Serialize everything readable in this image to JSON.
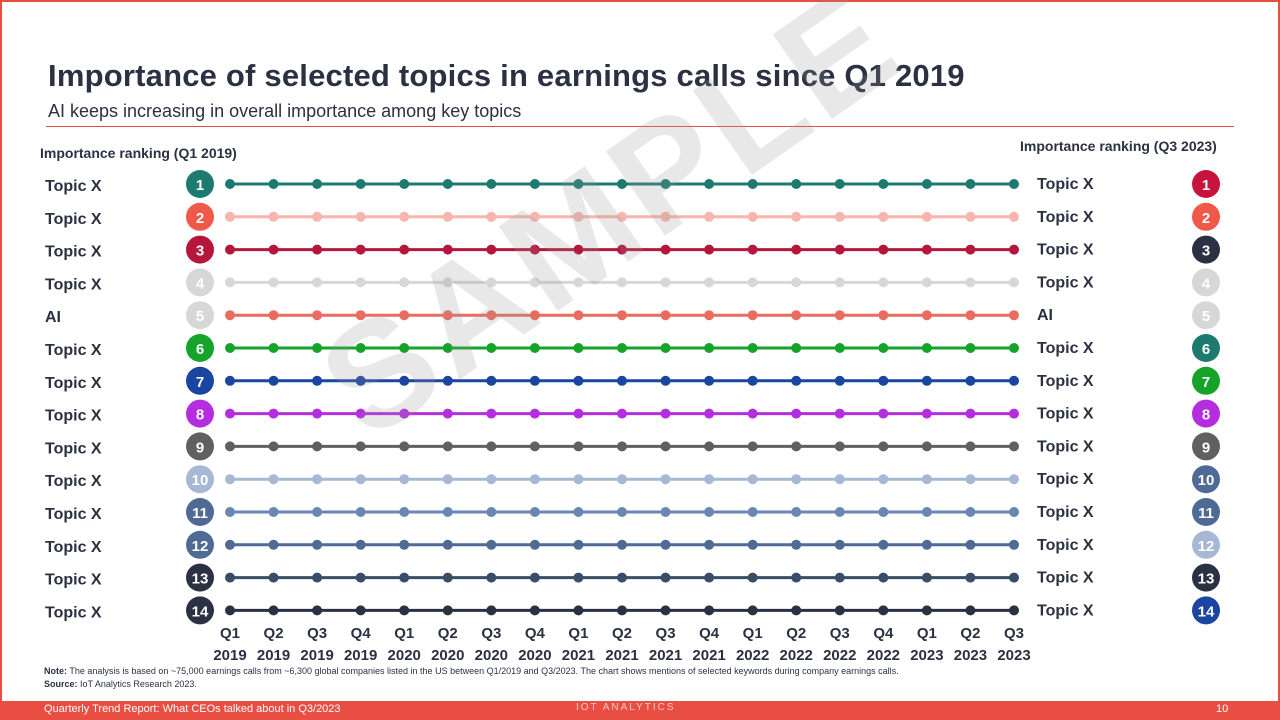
{
  "title": "Importance of selected topics in earnings calls since Q1 2019",
  "subtitle": "AI keeps increasing in overall importance among key topics",
  "left_heading": "Importance ranking (Q1 2019)",
  "right_heading": "Importance ranking (Q3 2023)",
  "watermark": "SAMPLE",
  "note_label": "Note:",
  "note_text": "The analysis is based on ~75,000 earnings calls from ~6,300 global companies listed in the US between Q1/2019 and Q3/2023. The chart shows mentions of selected keywords during company earnings calls.",
  "source_label": "Source:",
  "source_text": "IoT Analytics Research 2023.",
  "footer": {
    "left": "Quarterly Trend Report: What CEOs talked about in Q3/2023",
    "logo": "IOT ANALYTICS",
    "page": "10"
  },
  "chart_data": {
    "type": "line",
    "x_quarters": [
      "Q1",
      "Q2",
      "Q3",
      "Q4",
      "Q1",
      "Q2",
      "Q3",
      "Q4",
      "Q1",
      "Q2",
      "Q3",
      "Q4",
      "Q1",
      "Q2",
      "Q3",
      "Q4",
      "Q1",
      "Q2",
      "Q3"
    ],
    "x_years": [
      "2019",
      "2019",
      "2019",
      "2019",
      "2020",
      "2020",
      "2020",
      "2020",
      "2021",
      "2021",
      "2021",
      "2021",
      "2022",
      "2022",
      "2022",
      "2022",
      "2023",
      "2023",
      "2023"
    ],
    "left_ranks": [
      {
        "rank": "1",
        "label": "Topic X",
        "color": "#1c7a70"
      },
      {
        "rank": "2",
        "label": "Topic X",
        "color": "#f0584a"
      },
      {
        "rank": "3",
        "label": "Topic X",
        "color": "#b5173c"
      },
      {
        "rank": "4",
        "label": "Topic X",
        "color": "#d7d7d7"
      },
      {
        "rank": "5",
        "label": "AI",
        "color": "#d7d7d7"
      },
      {
        "rank": "6",
        "label": "Topic X",
        "color": "#16a329"
      },
      {
        "rank": "7",
        "label": "Topic X",
        "color": "#1a45a0"
      },
      {
        "rank": "8",
        "label": "Topic X",
        "color": "#b42ee0"
      },
      {
        "rank": "9",
        "label": "Topic X",
        "color": "#606060"
      },
      {
        "rank": "10",
        "label": "Topic X",
        "color": "#a7b8d4"
      },
      {
        "rank": "11",
        "label": "Topic X",
        "color": "#4f6a95"
      },
      {
        "rank": "12",
        "label": "Topic X",
        "color": "#4f6a95"
      },
      {
        "rank": "13",
        "label": "Topic X",
        "color": "#2b3142"
      },
      {
        "rank": "14",
        "label": "Topic X",
        "color": "#2b3142"
      }
    ],
    "right_ranks": [
      {
        "rank": "1",
        "label": "Topic X",
        "color": "#c8143d"
      },
      {
        "rank": "2",
        "label": "Topic X",
        "color": "#f0584a"
      },
      {
        "rank": "3",
        "label": "Topic X",
        "color": "#2b3142"
      },
      {
        "rank": "4",
        "label": "Topic X",
        "color": "#d7d7d7"
      },
      {
        "rank": "5",
        "label": "AI",
        "color": "#d7d7d7"
      },
      {
        "rank": "6",
        "label": "Topic X",
        "color": "#1c7a70"
      },
      {
        "rank": "7",
        "label": "Topic X",
        "color": "#16a329"
      },
      {
        "rank": "8",
        "label": "Topic X",
        "color": "#b42ee0"
      },
      {
        "rank": "9",
        "label": "Topic X",
        "color": "#606060"
      },
      {
        "rank": "10",
        "label": "Topic X",
        "color": "#4f6a95"
      },
      {
        "rank": "11",
        "label": "Topic X",
        "color": "#4f6a95"
      },
      {
        "rank": "12",
        "label": "Topic X",
        "color": "#a7b8d4"
      },
      {
        "rank": "13",
        "label": "Topic X",
        "color": "#2b3142"
      },
      {
        "rank": "14",
        "label": "Topic X",
        "color": "#1a45a0"
      }
    ],
    "series_colors": [
      "#1c7a70",
      "#f7b5ad",
      "#b5173c",
      "#d7d7d7",
      "#ea6b60",
      "#16a329",
      "#1a45a0",
      "#b42ee0",
      "#606060",
      "#a7b8d4",
      "#6a87b3",
      "#4f6a95",
      "#3a4d66",
      "#2b3142"
    ],
    "series_ranks": [
      [
        1,
        1,
        1,
        1,
        1,
        1,
        1,
        1,
        1,
        1,
        1,
        1,
        1,
        1,
        1,
        1,
        1,
        1,
        1
      ],
      [
        2,
        2,
        2,
        2,
        2,
        2,
        2,
        2,
        2,
        2,
        2,
        2,
        2,
        2,
        2,
        2,
        2,
        2,
        2
      ],
      [
        3,
        3,
        3,
        3,
        3,
        3,
        3,
        3,
        3,
        3,
        3,
        3,
        3,
        3,
        3,
        3,
        3,
        3,
        3
      ],
      [
        4,
        4,
        4,
        4,
        4,
        4,
        4,
        4,
        4,
        4,
        4,
        4,
        4,
        4,
        4,
        4,
        4,
        4,
        4
      ],
      [
        5,
        5,
        5,
        5,
        5,
        5,
        5,
        5,
        5,
        5,
        5,
        5,
        5,
        5,
        5,
        5,
        5,
        5,
        5
      ],
      [
        6,
        6,
        6,
        6,
        6,
        6,
        6,
        6,
        6,
        6,
        6,
        6,
        6,
        6,
        6,
        6,
        6,
        6,
        6
      ],
      [
        7,
        7,
        7,
        7,
        7,
        7,
        7,
        7,
        7,
        7,
        7,
        7,
        7,
        7,
        7,
        7,
        7,
        7,
        7
      ],
      [
        8,
        8,
        8,
        8,
        8,
        8,
        8,
        8,
        8,
        8,
        8,
        8,
        8,
        8,
        8,
        8,
        8,
        8,
        8
      ],
      [
        9,
        9,
        9,
        9,
        9,
        9,
        9,
        9,
        9,
        9,
        9,
        9,
        9,
        9,
        9,
        9,
        9,
        9,
        9
      ],
      [
        10,
        10,
        10,
        10,
        10,
        10,
        10,
        10,
        10,
        10,
        10,
        10,
        10,
        10,
        10,
        10,
        10,
        10,
        10
      ],
      [
        11,
        11,
        11,
        11,
        11,
        11,
        11,
        11,
        11,
        11,
        11,
        11,
        11,
        11,
        11,
        11,
        11,
        11,
        11
      ],
      [
        12,
        12,
        12,
        12,
        12,
        12,
        12,
        12,
        12,
        12,
        12,
        12,
        12,
        12,
        12,
        12,
        12,
        12,
        12
      ],
      [
        13,
        13,
        13,
        13,
        13,
        13,
        13,
        13,
        13,
        13,
        13,
        13,
        13,
        13,
        13,
        13,
        13,
        13,
        13
      ],
      [
        14,
        14,
        14,
        14,
        14,
        14,
        14,
        14,
        14,
        14,
        14,
        14,
        14,
        14,
        14,
        14,
        14,
        14,
        14
      ]
    ]
  }
}
